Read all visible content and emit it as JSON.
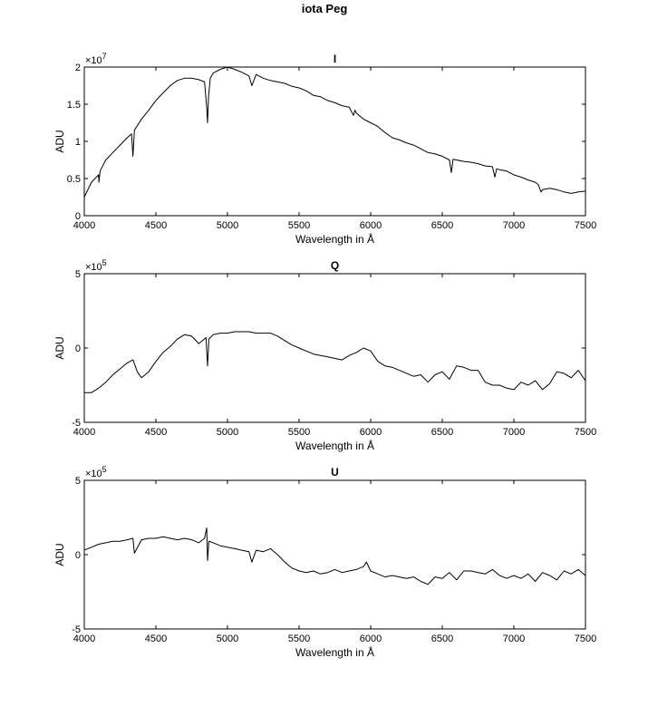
{
  "figure_title": "iota Peg",
  "chart_data": [
    {
      "type": "line",
      "title": "I",
      "xlabel": "Wavelength in Å",
      "ylabel": "ADU",
      "xlim": [
        4000,
        7500
      ],
      "ylim": [
        0,
        2
      ],
      "scale_factor": "×10^7",
      "scale_base": "×10",
      "scale_exponent": "7",
      "xticks": [
        4000,
        4500,
        5000,
        5500,
        6000,
        6500,
        7000,
        7500
      ],
      "yticks": [
        0,
        0.5,
        1,
        1.5,
        2
      ],
      "ytick_labels": [
        "0",
        "0.5",
        "1",
        "1.5",
        "2"
      ],
      "grid": false,
      "series": [
        {
          "x": [
            4000,
            4050,
            4100,
            4102,
            4110,
            4150,
            4200,
            4250,
            4300,
            4330,
            4340,
            4350,
            4400,
            4450,
            4500,
            4550,
            4600,
            4650,
            4700,
            4750,
            4800,
            4840,
            4855,
            4861,
            4868,
            4880,
            4900,
            4950,
            5000,
            5050,
            5100,
            5150,
            5170,
            5200,
            5250,
            5300,
            5350,
            5400,
            5450,
            5500,
            5550,
            5600,
            5650,
            5700,
            5750,
            5800,
            5850,
            5880,
            5890,
            5900,
            5950,
            6000,
            6050,
            6100,
            6150,
            6200,
            6250,
            6300,
            6350,
            6400,
            6450,
            6500,
            6550,
            6563,
            6575,
            6600,
            6650,
            6700,
            6750,
            6800,
            6850,
            6867,
            6880,
            6900,
            6950,
            7000,
            7050,
            7100,
            7150,
            7170,
            7190,
            7200,
            7250,
            7300,
            7350,
            7400,
            7450,
            7500
          ],
          "y": [
            0.25,
            0.45,
            0.55,
            0.45,
            0.6,
            0.75,
            0.85,
            0.95,
            1.05,
            1.1,
            0.8,
            1.15,
            1.3,
            1.42,
            1.55,
            1.65,
            1.75,
            1.82,
            1.85,
            1.85,
            1.83,
            1.8,
            1.45,
            1.25,
            1.6,
            1.85,
            1.92,
            1.97,
            2.0,
            1.97,
            1.93,
            1.88,
            1.75,
            1.9,
            1.85,
            1.82,
            1.8,
            1.78,
            1.74,
            1.72,
            1.68,
            1.62,
            1.6,
            1.55,
            1.52,
            1.48,
            1.46,
            1.35,
            1.42,
            1.38,
            1.3,
            1.25,
            1.2,
            1.12,
            1.05,
            1.02,
            0.98,
            0.95,
            0.9,
            0.85,
            0.83,
            0.8,
            0.75,
            0.58,
            0.76,
            0.75,
            0.73,
            0.72,
            0.7,
            0.67,
            0.66,
            0.52,
            0.63,
            0.62,
            0.6,
            0.55,
            0.52,
            0.48,
            0.45,
            0.42,
            0.32,
            0.35,
            0.37,
            0.35,
            0.32,
            0.3,
            0.32,
            0.33
          ]
        }
      ]
    },
    {
      "type": "line",
      "title": "Q",
      "xlabel": "Wavelength in Å",
      "ylabel": "ADU",
      "xlim": [
        4000,
        7500
      ],
      "ylim": [
        -5,
        5
      ],
      "scale_factor": "×10^5",
      "scale_base": "×10",
      "scale_exponent": "5",
      "xticks": [
        4000,
        4500,
        5000,
        5500,
        6000,
        6500,
        7000,
        7500
      ],
      "yticks": [
        -5,
        0,
        5
      ],
      "ytick_labels": [
        "-5",
        "0",
        "5"
      ],
      "grid": false,
      "series": [
        {
          "x": [
            4000,
            4050,
            4100,
            4150,
            4200,
            4250,
            4300,
            4340,
            4370,
            4400,
            4450,
            4500,
            4550,
            4600,
            4650,
            4700,
            4750,
            4800,
            4850,
            4861,
            4870,
            4900,
            4950,
            5000,
            5050,
            5100,
            5150,
            5200,
            5250,
            5300,
            5350,
            5400,
            5450,
            5500,
            5550,
            5600,
            5650,
            5700,
            5750,
            5800,
            5850,
            5900,
            5950,
            6000,
            6050,
            6100,
            6150,
            6200,
            6250,
            6300,
            6350,
            6400,
            6450,
            6500,
            6550,
            6600,
            6650,
            6700,
            6750,
            6800,
            6850,
            6900,
            6950,
            7000,
            7050,
            7100,
            7150,
            7200,
            7250,
            7300,
            7350,
            7400,
            7450,
            7500
          ],
          "y": [
            -3.0,
            -3.0,
            -2.7,
            -2.3,
            -1.8,
            -1.4,
            -1.0,
            -0.8,
            -1.6,
            -2.0,
            -1.6,
            -0.9,
            -0.3,
            0.1,
            0.6,
            0.9,
            0.8,
            0.3,
            0.7,
            -1.2,
            0.6,
            0.9,
            1.0,
            1.0,
            1.1,
            1.1,
            1.1,
            1.0,
            1.0,
            1.0,
            0.8,
            0.5,
            0.2,
            0.0,
            -0.2,
            -0.4,
            -0.5,
            -0.6,
            -0.7,
            -0.8,
            -0.5,
            -0.3,
            0.0,
            -0.2,
            -0.9,
            -1.2,
            -1.3,
            -1.5,
            -1.7,
            -1.9,
            -1.8,
            -2.3,
            -1.8,
            -1.6,
            -2.1,
            -1.2,
            -1.3,
            -1.5,
            -1.5,
            -2.3,
            -2.5,
            -2.5,
            -2.7,
            -2.8,
            -2.3,
            -2.5,
            -2.2,
            -2.8,
            -2.4,
            -1.6,
            -1.7,
            -2.0,
            -1.5,
            -2.2
          ]
        }
      ]
    },
    {
      "type": "line",
      "title": "U",
      "xlabel": "Wavelength in Å",
      "ylabel": "ADU",
      "xlim": [
        4000,
        7500
      ],
      "ylim": [
        -5,
        5
      ],
      "scale_factor": "×10^5",
      "scale_base": "×10",
      "scale_exponent": "5",
      "xticks": [
        4000,
        4500,
        5000,
        5500,
        6000,
        6500,
        7000,
        7500
      ],
      "yticks": [
        -5,
        0,
        5
      ],
      "ytick_labels": [
        "-5",
        "0",
        "5"
      ],
      "grid": false,
      "series": [
        {
          "x": [
            4000,
            4050,
            4100,
            4150,
            4200,
            4250,
            4300,
            4340,
            4350,
            4400,
            4450,
            4500,
            4550,
            4600,
            4650,
            4700,
            4750,
            4800,
            4840,
            4855,
            4861,
            4870,
            4900,
            4950,
            5000,
            5050,
            5100,
            5150,
            5170,
            5200,
            5250,
            5300,
            5350,
            5400,
            5450,
            5500,
            5550,
            5600,
            5650,
            5700,
            5750,
            5800,
            5850,
            5900,
            5950,
            5970,
            6000,
            6050,
            6100,
            6150,
            6200,
            6250,
            6300,
            6350,
            6400,
            6450,
            6500,
            6550,
            6600,
            6650,
            6700,
            6750,
            6800,
            6850,
            6900,
            6950,
            7000,
            7050,
            7100,
            7150,
            7200,
            7250,
            7300,
            7350,
            7400,
            7450,
            7500
          ],
          "y": [
            0.3,
            0.5,
            0.7,
            0.8,
            0.9,
            0.9,
            1.0,
            1.1,
            0.1,
            1.0,
            1.1,
            1.1,
            1.2,
            1.1,
            1.0,
            1.1,
            1.0,
            0.8,
            1.1,
            1.8,
            -0.4,
            0.9,
            0.8,
            0.6,
            0.5,
            0.4,
            0.3,
            0.2,
            -0.5,
            0.3,
            0.2,
            0.4,
            0.0,
            -0.5,
            -0.9,
            -1.1,
            -1.2,
            -1.1,
            -1.3,
            -1.2,
            -1.0,
            -1.2,
            -1.1,
            -1.0,
            -0.8,
            -0.5,
            -1.1,
            -1.3,
            -1.5,
            -1.4,
            -1.5,
            -1.6,
            -1.5,
            -1.8,
            -2.0,
            -1.5,
            -1.6,
            -1.2,
            -1.7,
            -1.1,
            -1.1,
            -1.2,
            -1.3,
            -1.0,
            -1.4,
            -1.6,
            -1.4,
            -1.6,
            -1.3,
            -1.8,
            -1.2,
            -1.4,
            -1.7,
            -1.1,
            -1.3,
            -1.0,
            -1.4
          ]
        }
      ]
    }
  ]
}
